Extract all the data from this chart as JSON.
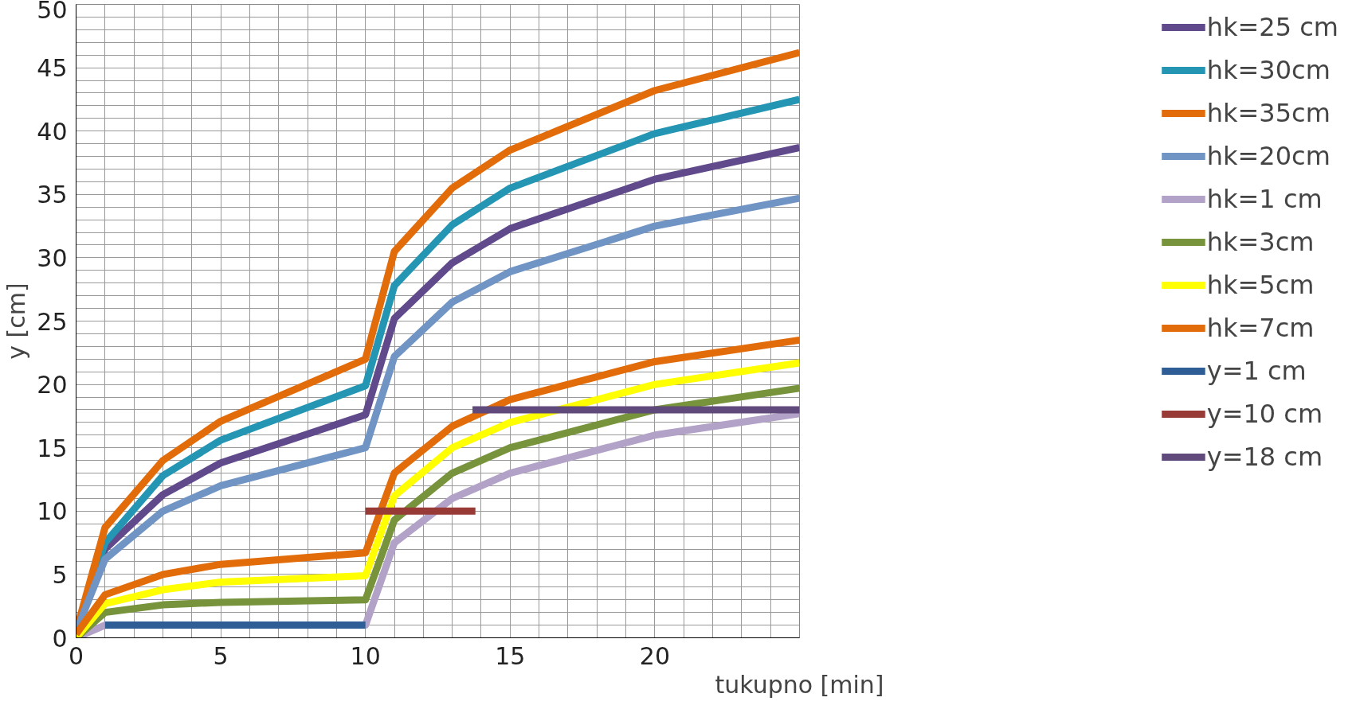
{
  "chart_data": {
    "type": "line",
    "xlabel": "tukupno [min]",
    "ylabel": "y [cm]",
    "xlim": [
      0,
      25
    ],
    "ylim": [
      0,
      50
    ],
    "xticks": [
      0,
      {
        "value": 1,
        "label": null
      },
      {
        "value": 2,
        "label": null
      },
      {
        "value": 3,
        "label": null
      },
      {
        "value": 4,
        "label": null
      },
      5,
      {
        "value": 6,
        "label": null
      },
      {
        "value": 7,
        "label": null
      },
      {
        "value": 8,
        "label": null
      },
      {
        "value": 9,
        "label": null
      },
      10,
      {
        "value": 11,
        "label": null
      },
      {
        "value": 12,
        "label": null
      },
      {
        "value": 13,
        "label": null
      },
      {
        "value": 14,
        "label": null
      },
      15,
      {
        "value": 16,
        "label": null
      },
      {
        "value": 17,
        "label": null
      },
      {
        "value": 18,
        "label": null
      },
      {
        "value": 19,
        "label": null
      },
      20,
      {
        "value": 21,
        "label": null
      },
      {
        "value": 22,
        "label": null
      },
      {
        "value": 23,
        "label": null
      },
      {
        "value": 24,
        "label": null
      },
      {
        "value": 25,
        "label": null
      }
    ],
    "yticks": [
      0,
      {
        "value": 1,
        "label": null
      },
      {
        "value": 2,
        "label": null
      },
      {
        "value": 3,
        "label": null
      },
      {
        "value": 4,
        "label": null
      },
      5,
      {
        "value": 6,
        "label": null
      },
      {
        "value": 7,
        "label": null
      },
      {
        "value": 8,
        "label": null
      },
      {
        "value": 9,
        "label": null
      },
      10,
      {
        "value": 11,
        "label": null
      },
      {
        "value": 12,
        "label": null
      },
      {
        "value": 13,
        "label": null
      },
      {
        "value": 14,
        "label": null
      },
      15,
      {
        "value": 16,
        "label": null
      },
      {
        "value": 17,
        "label": null
      },
      {
        "value": 18,
        "label": null
      },
      {
        "value": 19,
        "label": null
      },
      20,
      {
        "value": 21,
        "label": null
      },
      {
        "value": 22,
        "label": null
      },
      {
        "value": 23,
        "label": null
      },
      {
        "value": 24,
        "label": null
      },
      25,
      {
        "value": 26,
        "label": null
      },
      {
        "value": 27,
        "label": null
      },
      {
        "value": 28,
        "label": null
      },
      {
        "value": 29,
        "label": null
      },
      30,
      {
        "value": 31,
        "label": null
      },
      {
        "value": 32,
        "label": null
      },
      {
        "value": 33,
        "label": null
      },
      {
        "value": 34,
        "label": null
      },
      35,
      {
        "value": 36,
        "label": null
      },
      {
        "value": 37,
        "label": null
      },
      {
        "value": 38,
        "label": null
      },
      {
        "value": 39,
        "label": null
      },
      40,
      {
        "value": 41,
        "label": null
      },
      {
        "value": 42,
        "label": null
      },
      {
        "value": 43,
        "label": null
      },
      {
        "value": 44,
        "label": null
      },
      45,
      {
        "value": 46,
        "label": null
      },
      {
        "value": 47,
        "label": null
      },
      {
        "value": 48,
        "label": null
      },
      {
        "value": 49,
        "label": null
      },
      50
    ],
    "grid": true,
    "legend": "right",
    "line_style": "solid",
    "marker": "none",
    "x": [
      0,
      1,
      3,
      5,
      10,
      11,
      13,
      15,
      20,
      25
    ],
    "series": [
      {
        "name": "hk=25 cm",
        "color": "#604a8b",
        "values": [
          0.5,
          7,
          11.3,
          13.8,
          17.6,
          25.2,
          29.6,
          32.3,
          36.2,
          38.7
        ]
      },
      {
        "name": "hk=30cm",
        "color": "#2496b3",
        "values": [
          0.5,
          7.5,
          12.8,
          15.6,
          19.9,
          27.8,
          32.6,
          35.5,
          39.8,
          42.5
        ]
      },
      {
        "name": "hk=35cm",
        "color": "#e36c0a",
        "values": [
          0.5,
          8.7,
          14,
          17.1,
          22,
          30.5,
          35.5,
          38.5,
          43.2,
          46.2
        ]
      },
      {
        "name": "hk=20cm",
        "color": "#7094c4",
        "values": [
          0.5,
          6.2,
          10,
          12,
          15,
          22.2,
          26.5,
          28.9,
          32.5,
          34.7
        ]
      },
      {
        "name": "hk=1 cm",
        "color": "#b3a2c7",
        "values": [
          0,
          1,
          1,
          1,
          1,
          7.5,
          11,
          13,
          16,
          17.7
        ]
      },
      {
        "name": "hk=3cm",
        "color": "#77933c",
        "values": [
          0,
          2,
          2.6,
          2.8,
          3,
          9.3,
          13,
          15,
          18,
          19.7
        ]
      },
      {
        "name": "hk=5cm",
        "color": "#ffff00",
        "values": [
          0,
          2.7,
          3.8,
          4.4,
          4.9,
          11.2,
          15,
          17,
          20,
          21.7
        ]
      },
      {
        "name": "hk=7cm",
        "color": "#e36c0a",
        "values": [
          0.3,
          3.4,
          5,
          5.8,
          6.7,
          13,
          16.7,
          18.8,
          21.8,
          23.5
        ]
      },
      {
        "name": "y=1 cm",
        "color": "#2f5d95",
        "x": [
          1,
          10
        ],
        "values": [
          1,
          1
        ]
      },
      {
        "name": "y=10 cm",
        "color": "#983a36",
        "x": [
          10,
          13.8
        ],
        "values": [
          10,
          10
        ]
      },
      {
        "name": "y=18 cm",
        "color": "#604a7b",
        "x": [
          13.7,
          25
        ],
        "values": [
          18,
          18
        ]
      }
    ]
  }
}
